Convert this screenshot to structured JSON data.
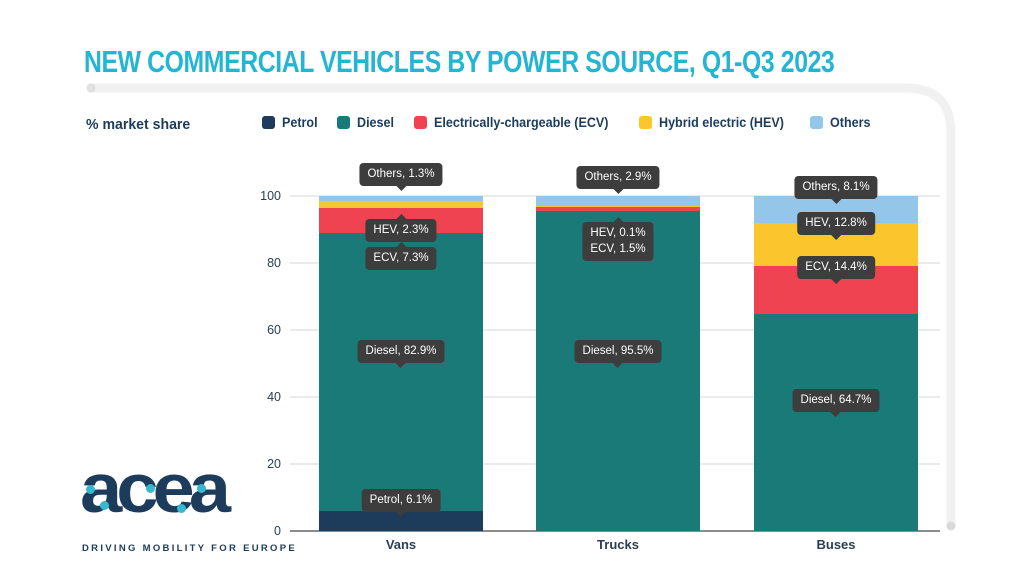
{
  "title": "NEW COMMERCIAL VEHICLES BY POWER SOURCE, Q1-Q3 2023",
  "axis_unit_label": "% market share",
  "legend": [
    {
      "label": "Petrol",
      "color": "#1d3c5c"
    },
    {
      "label": "Diesel",
      "color": "#1a7a78"
    },
    {
      "label": "Electrically-chargeable (ECV)",
      "color": "#ef4352"
    },
    {
      "label": "Hybrid electric (HEV)",
      "color": "#fbc62d"
    },
    {
      "label": "Others",
      "color": "#94c6ea"
    }
  ],
  "chart_data": {
    "type": "bar",
    "stacked": true,
    "title": "NEW COMMERCIAL VEHICLES BY POWER SOURCE, Q1-Q3 2023",
    "ylabel": "% market share",
    "xlabel": "",
    "ylim": [
      0,
      100
    ],
    "yticks": [
      0,
      20,
      40,
      60,
      80,
      100
    ],
    "grid": true,
    "legend_position": "top",
    "categories": [
      "Vans",
      "Trucks",
      "Buses"
    ],
    "series": [
      {
        "name": "Petrol",
        "color": "#1d3c5c",
        "values": [
          6.1,
          0,
          0
        ]
      },
      {
        "name": "Diesel",
        "color": "#1a7a78",
        "values": [
          82.9,
          95.5,
          64.7
        ]
      },
      {
        "name": "Electrically-chargeable (ECV)",
        "color": "#ef4352",
        "values": [
          7.3,
          1.5,
          14.4
        ]
      },
      {
        "name": "Hybrid electric (HEV)",
        "color": "#fbc62d",
        "values": [
          2.3,
          0.1,
          12.8
        ]
      },
      {
        "name": "Others",
        "color": "#94c6ea",
        "values": [
          1.3,
          2.9,
          8.1
        ]
      }
    ],
    "annotations": {
      "Vans": [
        "Others, 1.3%",
        "HEV, 2.3%",
        "ECV, 7.3%",
        "Diesel, 82.9%",
        "Petrol, 6.1%"
      ],
      "Trucks": [
        "Others, 2.9%",
        "HEV, 0.1%",
        "ECV, 1.5%",
        "Diesel, 95.5%"
      ],
      "Buses": [
        "Others, 8.1%",
        "HEV, 12.8%",
        "ECV, 14.4%",
        "Diesel, 64.7%"
      ]
    }
  },
  "logo": {
    "text": "acea",
    "tagline": "DRIVING MOBILITY FOR EUROPE"
  },
  "colors": {
    "title_accent": "#22b6d4",
    "navy": "#1d3c5c",
    "teal": "#1a7a78",
    "red": "#ef4352",
    "yellow": "#fbc62d",
    "light_blue": "#94c6ea",
    "label_bg": "#3d3d3d",
    "gridline": "#ebebeb",
    "baseline": "#8b8b8b",
    "frame": "#f1f1f1"
  }
}
